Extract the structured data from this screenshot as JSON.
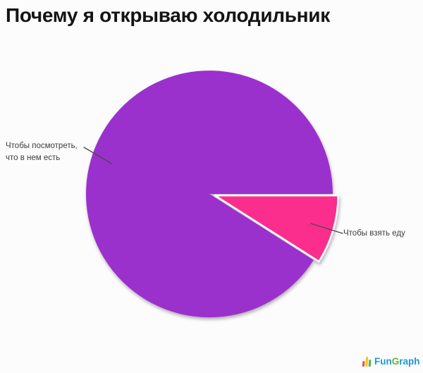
{
  "page": {
    "background": "#fcfcfc"
  },
  "chart_data": {
    "type": "pie",
    "title": "Почему я открываю холодильник",
    "slices": [
      {
        "label": "Чтобы посмотреть, что в нем есть",
        "value": 91,
        "color": "#9a31cd",
        "exploded": false,
        "label_side": "left"
      },
      {
        "label": "Чтобы взять еду",
        "value": 9,
        "color": "#fb2e8d",
        "exploded": true,
        "label_side": "right"
      }
    ],
    "unit": "percent",
    "start_angle_deg": 32.4,
    "direction": "clockwise",
    "legend": "none",
    "separator_color": "#ffffff",
    "annotation_style": "leader-lines"
  },
  "logo": {
    "name": "FunGraph",
    "parts": [
      "Fun",
      "G",
      "raph"
    ],
    "part_colors": [
      "#1b9ad6",
      "#64b52d",
      "#1b9ad6"
    ],
    "icon_bar_colors": [
      "#e2574c",
      "#f5c51c",
      "#58b847"
    ]
  }
}
